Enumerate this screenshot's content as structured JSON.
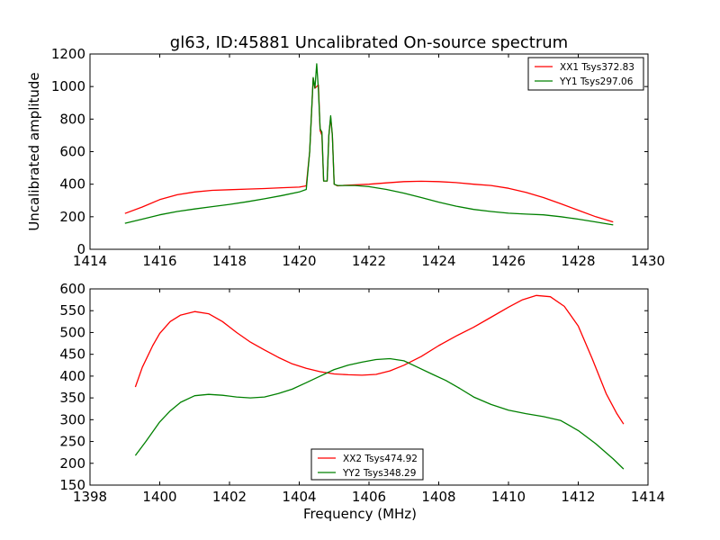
{
  "title": "gl63, ID:45881 Uncalibrated On-source spectrum",
  "chart_data": [
    {
      "type": "line",
      "xlim": [
        1414,
        1430
      ],
      "ylim": [
        0,
        1200
      ],
      "xticks": [
        1414,
        1416,
        1418,
        1420,
        1422,
        1424,
        1426,
        1428,
        1430
      ],
      "yticks": [
        0,
        200,
        400,
        600,
        800,
        1000,
        1200
      ],
      "xlabel": "",
      "ylabel": "Uncalibrated amplitude",
      "legend_position": "top-right",
      "grid": false,
      "series": [
        {
          "name": "XX1 Tsys372.83",
          "color": "#ff0000",
          "x": [
            1415.0,
            1415.5,
            1416.0,
            1416.5,
            1417.0,
            1417.5,
            1418.0,
            1418.5,
            1419.0,
            1419.5,
            1420.0,
            1420.2,
            1420.3,
            1420.4,
            1420.45,
            1420.5,
            1420.55,
            1420.6,
            1420.65,
            1420.7,
            1420.8,
            1420.85,
            1420.9,
            1420.95,
            1421.0,
            1421.1,
            1421.3,
            1421.6,
            1422.0,
            1422.5,
            1423.0,
            1423.5,
            1424.0,
            1424.5,
            1425.0,
            1425.5,
            1426.0,
            1426.5,
            1427.0,
            1427.5,
            1428.0,
            1428.5,
            1429.0
          ],
          "y": [
            220,
            260,
            305,
            335,
            352,
            362,
            366,
            370,
            373,
            378,
            382,
            390,
            600,
            1050,
            990,
            1000,
            1010,
            730,
            700,
            420,
            420,
            700,
            810,
            700,
            400,
            390,
            393,
            396,
            400,
            408,
            416,
            418,
            416,
            410,
            400,
            392,
            375,
            350,
            318,
            280,
            240,
            200,
            168
          ]
        },
        {
          "name": "YY1 Tsys297.06",
          "color": "#008000",
          "x": [
            1415.0,
            1415.5,
            1416.0,
            1416.5,
            1417.0,
            1417.5,
            1418.0,
            1418.5,
            1419.0,
            1419.5,
            1420.0,
            1420.2,
            1420.3,
            1420.4,
            1420.45,
            1420.5,
            1420.55,
            1420.6,
            1420.65,
            1420.7,
            1420.8,
            1420.85,
            1420.9,
            1420.95,
            1421.0,
            1421.1,
            1421.3,
            1421.6,
            1422.0,
            1422.5,
            1423.0,
            1423.5,
            1424.0,
            1424.5,
            1425.0,
            1425.5,
            1426.0,
            1426.5,
            1427.0,
            1427.5,
            1428.0,
            1428.5,
            1429.0
          ],
          "y": [
            160,
            185,
            212,
            232,
            248,
            262,
            276,
            292,
            310,
            330,
            352,
            368,
            600,
            1055,
            990,
            1140,
            980,
            740,
            720,
            420,
            420,
            700,
            820,
            700,
            400,
            392,
            392,
            392,
            385,
            368,
            345,
            318,
            290,
            265,
            245,
            232,
            222,
            216,
            212,
            200,
            185,
            168,
            150
          ]
        }
      ]
    },
    {
      "type": "line",
      "xlim": [
        1398,
        1414
      ],
      "ylim": [
        150,
        600
      ],
      "xticks": [
        1398,
        1400,
        1402,
        1404,
        1406,
        1408,
        1410,
        1412,
        1414
      ],
      "yticks": [
        150,
        200,
        250,
        300,
        350,
        400,
        450,
        500,
        550,
        600
      ],
      "xlabel": "Frequency (MHz)",
      "ylabel": "",
      "legend_position": "bottom-center",
      "grid": false,
      "series": [
        {
          "name": "XX2 Tsys474.92",
          "color": "#ff0000",
          "x": [
            1399.3,
            1399.5,
            1399.8,
            1400.0,
            1400.3,
            1400.6,
            1401.0,
            1401.4,
            1401.8,
            1402.2,
            1402.6,
            1403.0,
            1403.4,
            1403.8,
            1404.2,
            1404.6,
            1405.0,
            1405.4,
            1405.8,
            1406.2,
            1406.6,
            1407.0,
            1407.5,
            1408.0,
            1408.5,
            1409.0,
            1409.5,
            1410.0,
            1410.4,
            1410.8,
            1411.2,
            1411.6,
            1412.0,
            1412.4,
            1412.8,
            1413.1,
            1413.3
          ],
          "y": [
            375,
            420,
            470,
            498,
            525,
            540,
            548,
            543,
            525,
            500,
            478,
            460,
            443,
            428,
            418,
            410,
            405,
            403,
            402,
            404,
            412,
            425,
            445,
            470,
            492,
            512,
            535,
            558,
            575,
            585,
            582,
            560,
            515,
            440,
            360,
            315,
            290
          ]
        },
        {
          "name": "YY2 Tsys348.29",
          "color": "#008000",
          "x": [
            1399.3,
            1399.6,
            1400.0,
            1400.3,
            1400.6,
            1401.0,
            1401.4,
            1401.8,
            1402.2,
            1402.6,
            1403.0,
            1403.4,
            1403.8,
            1404.2,
            1404.6,
            1405.0,
            1405.4,
            1405.8,
            1406.2,
            1406.6,
            1407.0,
            1407.4,
            1407.8,
            1408.2,
            1408.6,
            1409.0,
            1409.5,
            1410.0,
            1410.5,
            1411.0,
            1411.5,
            1412.0,
            1412.5,
            1413.0,
            1413.3
          ],
          "y": [
            218,
            250,
            295,
            320,
            340,
            355,
            358,
            356,
            352,
            350,
            352,
            360,
            370,
            385,
            400,
            415,
            425,
            432,
            438,
            440,
            435,
            420,
            405,
            390,
            372,
            352,
            335,
            322,
            314,
            307,
            298,
            275,
            245,
            210,
            187
          ]
        }
      ]
    }
  ]
}
